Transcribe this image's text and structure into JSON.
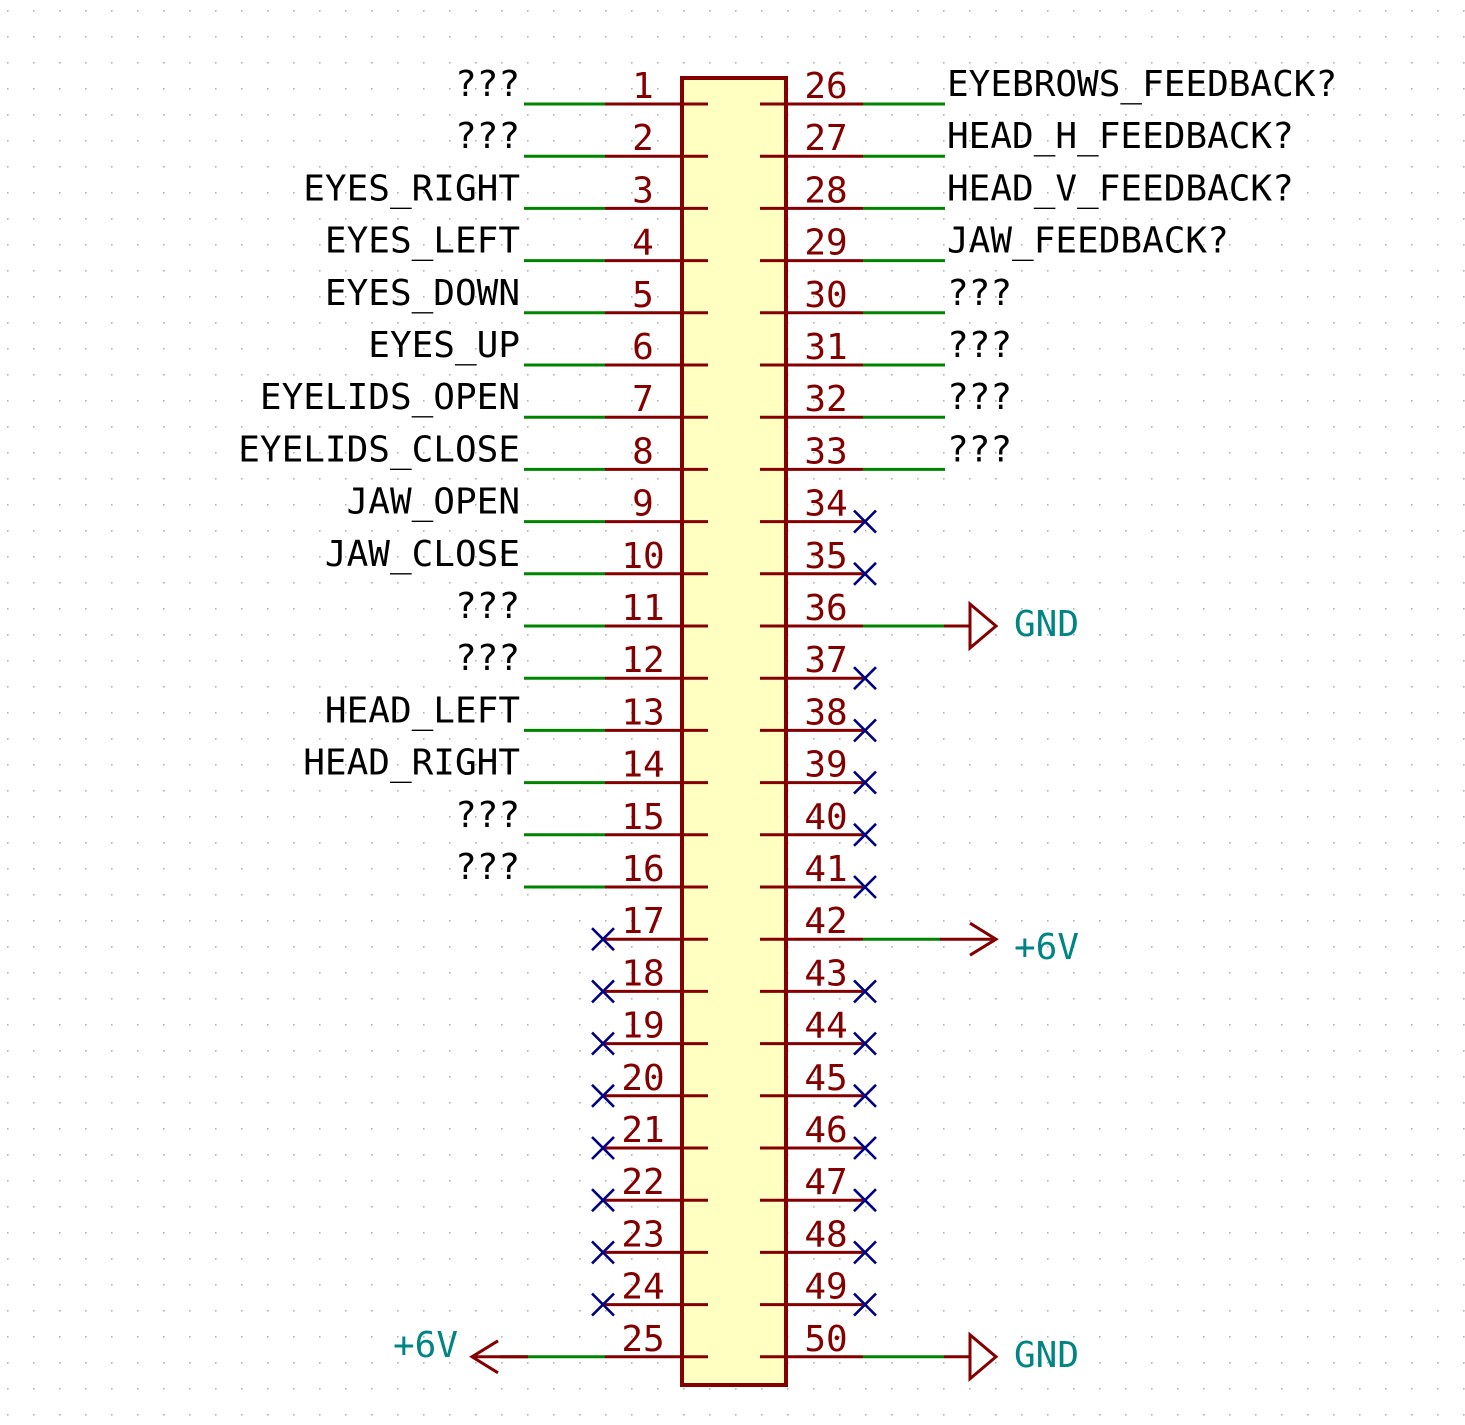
{
  "colors": {
    "background": "#ffffff",
    "grid_dot": "#b4b4b4",
    "body_fill": "#ffffc2",
    "body_stroke": "#840000",
    "pin": "#840000",
    "wire": "#008400",
    "no_connect": "#000084",
    "label_text": "#000000",
    "power_text": "#008484"
  },
  "connector": {
    "left_pins": [
      {
        "number": "1",
        "net": "???",
        "nc": false
      },
      {
        "number": "2",
        "net": "???",
        "nc": false
      },
      {
        "number": "3",
        "net": "EYES_RIGHT",
        "nc": false
      },
      {
        "number": "4",
        "net": "EYES_LEFT",
        "nc": false
      },
      {
        "number": "5",
        "net": "EYES_DOWN",
        "nc": false
      },
      {
        "number": "6",
        "net": "EYES_UP",
        "nc": false
      },
      {
        "number": "7",
        "net": "EYELIDS_OPEN",
        "nc": false
      },
      {
        "number": "8",
        "net": "EYELIDS_CLOSE",
        "nc": false
      },
      {
        "number": "9",
        "net": "JAW_OPEN",
        "nc": false
      },
      {
        "number": "10",
        "net": "JAW_CLOSE",
        "nc": false
      },
      {
        "number": "11",
        "net": "???",
        "nc": false
      },
      {
        "number": "12",
        "net": "???",
        "nc": false
      },
      {
        "number": "13",
        "net": "HEAD_LEFT",
        "nc": false
      },
      {
        "number": "14",
        "net": "HEAD_RIGHT",
        "nc": false
      },
      {
        "number": "15",
        "net": "???",
        "nc": false
      },
      {
        "number": "16",
        "net": "???",
        "nc": false
      },
      {
        "number": "17",
        "net": "",
        "nc": true
      },
      {
        "number": "18",
        "net": "",
        "nc": true
      },
      {
        "number": "19",
        "net": "",
        "nc": true
      },
      {
        "number": "20",
        "net": "",
        "nc": true
      },
      {
        "number": "21",
        "net": "",
        "nc": true
      },
      {
        "number": "22",
        "net": "",
        "nc": true
      },
      {
        "number": "23",
        "net": "",
        "nc": true
      },
      {
        "number": "24",
        "net": "",
        "nc": true
      },
      {
        "number": "25",
        "net": "",
        "nc": false,
        "power": "+6V",
        "power_symbol": "arrow"
      }
    ],
    "right_pins": [
      {
        "number": "26",
        "net": "EYEBROWS_FEEDBACK?",
        "nc": false
      },
      {
        "number": "27",
        "net": "HEAD_H_FEEDBACK?",
        "nc": false
      },
      {
        "number": "28",
        "net": "HEAD_V_FEEDBACK?",
        "nc": false
      },
      {
        "number": "29",
        "net": "JAW_FEEDBACK?",
        "nc": false
      },
      {
        "number": "30",
        "net": "???",
        "nc": false
      },
      {
        "number": "31",
        "net": "???",
        "nc": false
      },
      {
        "number": "32",
        "net": "???",
        "nc": false
      },
      {
        "number": "33",
        "net": "???",
        "nc": false
      },
      {
        "number": "34",
        "net": "",
        "nc": true
      },
      {
        "number": "35",
        "net": "",
        "nc": true
      },
      {
        "number": "36",
        "net": "",
        "nc": false,
        "power": "GND",
        "power_symbol": "triangle"
      },
      {
        "number": "37",
        "net": "",
        "nc": true
      },
      {
        "number": "38",
        "net": "",
        "nc": true
      },
      {
        "number": "39",
        "net": "",
        "nc": true
      },
      {
        "number": "40",
        "net": "",
        "nc": true
      },
      {
        "number": "41",
        "net": "",
        "nc": true
      },
      {
        "number": "42",
        "net": "",
        "nc": false,
        "power": "+6V",
        "power_symbol": "arrow"
      },
      {
        "number": "43",
        "net": "",
        "nc": true
      },
      {
        "number": "44",
        "net": "",
        "nc": true
      },
      {
        "number": "45",
        "net": "",
        "nc": true
      },
      {
        "number": "46",
        "net": "",
        "nc": true
      },
      {
        "number": "47",
        "net": "",
        "nc": true
      },
      {
        "number": "48",
        "net": "",
        "nc": true
      },
      {
        "number": "49",
        "net": "",
        "nc": true
      },
      {
        "number": "50",
        "net": "",
        "nc": false,
        "power": "GND",
        "power_symbol": "triangle"
      }
    ]
  }
}
